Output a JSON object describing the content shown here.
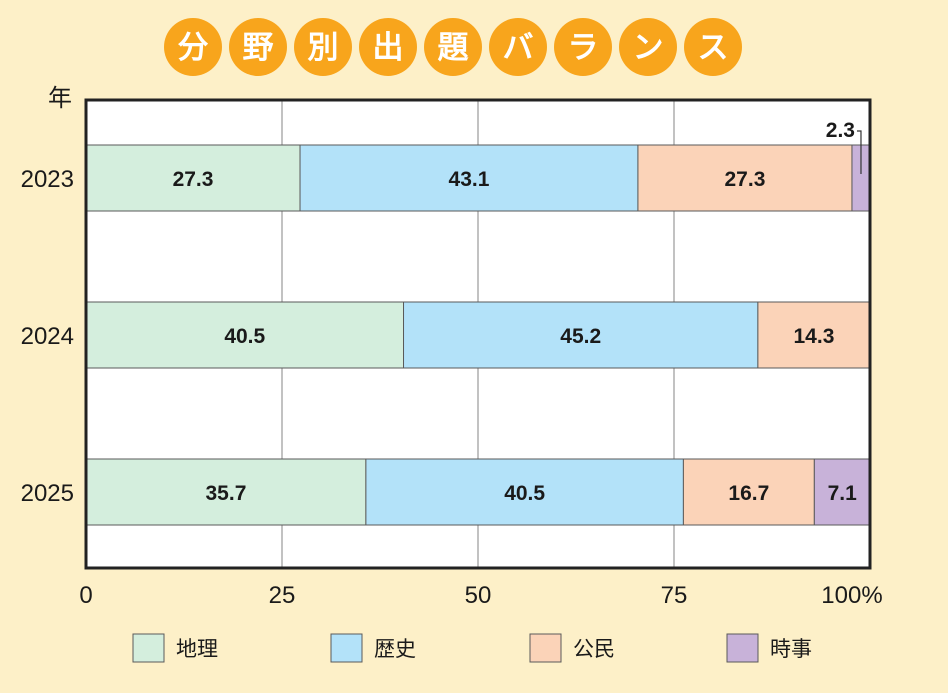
{
  "chart_data": {
    "type": "bar",
    "orientation": "horizontal",
    "stacked": true,
    "title": "分野別出題バランス",
    "ylabel": "年",
    "xlabel": "",
    "categories": [
      "2023",
      "2024",
      "2025"
    ],
    "series": [
      {
        "name": "地理",
        "color": "#d4eedd",
        "values": [
          27.3,
          40.5,
          35.7
        ]
      },
      {
        "name": "歴史",
        "color": "#b3e2f9",
        "values": [
          43.1,
          45.2,
          40.5
        ]
      },
      {
        "name": "公民",
        "color": "#fbd3b8",
        "values": [
          27.3,
          14.3,
          16.7
        ]
      },
      {
        "name": "時事",
        "color": "#c8b2d9",
        "values": [
          2.3,
          0,
          7.1
        ]
      }
    ],
    "xlim": [
      0,
      100
    ],
    "xticks": [
      "0",
      "25",
      "50",
      "75",
      "100%"
    ],
    "grid": true,
    "legend_position": "bottom"
  }
}
